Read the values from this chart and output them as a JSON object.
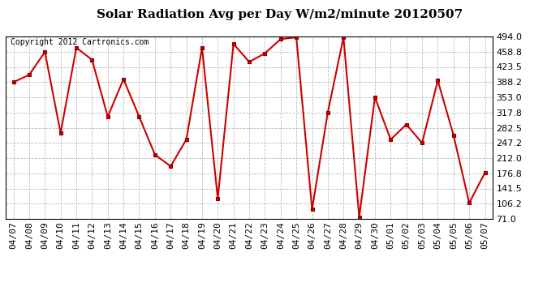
{
  "title": "Solar Radiation Avg per Day W/m2/minute 20120507",
  "copyright": "Copyright 2012 Cartronics.com",
  "x_labels": [
    "04/07",
    "04/08",
    "04/09",
    "04/10",
    "04/11",
    "04/12",
    "04/13",
    "04/14",
    "04/15",
    "04/16",
    "04/17",
    "04/18",
    "04/19",
    "04/20",
    "04/21",
    "04/22",
    "04/23",
    "04/24",
    "04/25",
    "04/26",
    "04/27",
    "04/28",
    "04/29",
    "04/30",
    "05/01",
    "05/02",
    "05/03",
    "05/04",
    "05/05",
    "05/06",
    "05/07"
  ],
  "y_values": [
    388,
    405,
    458,
    270,
    468,
    440,
    308,
    395,
    308,
    220,
    193,
    255,
    468,
    118,
    477,
    435,
    455,
    488,
    492,
    93,
    318,
    492,
    75,
    353,
    255,
    290,
    247,
    392,
    265,
    108,
    178
  ],
  "y_min": 71.0,
  "y_max": 494.0,
  "y_ticks": [
    71.0,
    106.2,
    141.5,
    176.8,
    212.0,
    247.2,
    282.5,
    317.8,
    353.0,
    388.2,
    423.5,
    458.8,
    494.0
  ],
  "line_color": "#cc0000",
  "marker": "s",
  "marker_size": 3,
  "marker_color": "#cc0000",
  "grid_color": "#bbbbbb",
  "background_color": "#ffffff",
  "title_fontsize": 11,
  "copyright_fontsize": 7,
  "tick_fontsize": 8
}
